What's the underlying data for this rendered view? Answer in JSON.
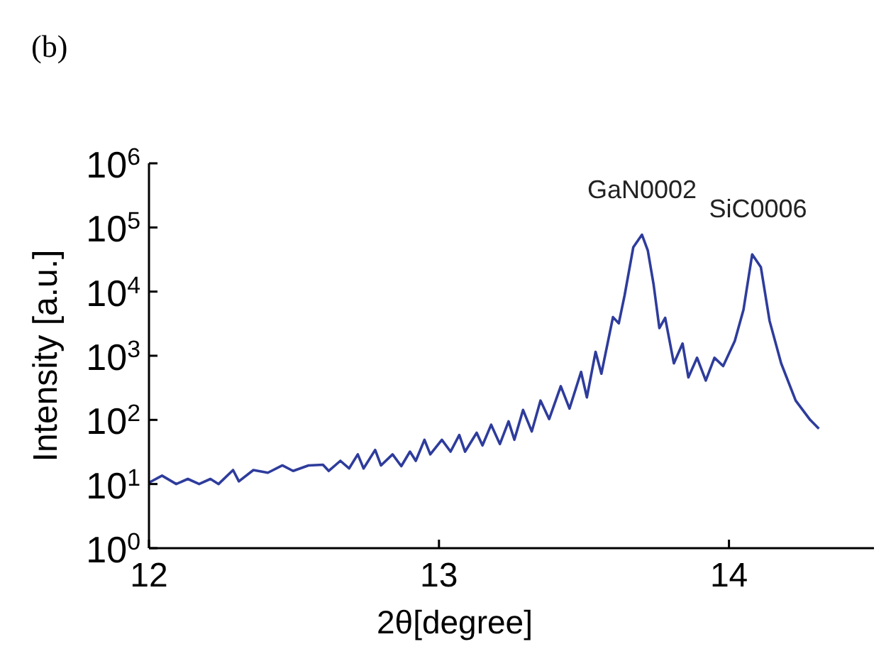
{
  "chart_data": {
    "type": "line",
    "title": "(b)",
    "xlabel": "2θ[degree]",
    "ylabel": "Intensity [a.u.]",
    "log": "y",
    "xlim": [
      12,
      14.5
    ],
    "ylim": [
      1,
      1000000
    ],
    "xticks": [
      12,
      13,
      14
    ],
    "yticks": [
      {
        "value": 1,
        "label": "10$^{0}$"
      },
      {
        "value": 10,
        "label": "10$^{1}$"
      },
      {
        "value": 100,
        "label": "10$^{2}$"
      },
      {
        "value": 1000,
        "label": "10$^{3}$"
      },
      {
        "value": 10000,
        "label": "10$^{4}$"
      },
      {
        "value": 100000,
        "label": "10$^{5}$"
      },
      {
        "value": 1000000,
        "label": "10$^{6}$"
      }
    ],
    "grid": false,
    "marker": "none",
    "line_style": "solid",
    "annotations": [
      {
        "text": "GaN0002",
        "x": 13.7,
        "y": 77000
      },
      {
        "text": "SiC0006",
        "x": 14.1,
        "y": 38000
      }
    ],
    "series": [
      {
        "color": "#2e3c9c",
        "x": [
          12.0,
          12.045,
          12.094,
          12.134,
          12.173,
          12.212,
          12.24,
          12.29,
          12.31,
          12.36,
          12.41,
          12.46,
          12.497,
          12.55,
          12.6,
          12.62,
          12.66,
          12.69,
          12.72,
          12.74,
          12.78,
          12.8,
          12.84,
          12.87,
          12.9,
          12.92,
          12.95,
          12.97,
          13.01,
          13.04,
          13.07,
          13.09,
          13.13,
          13.15,
          13.18,
          13.21,
          13.24,
          13.26,
          13.29,
          13.32,
          13.35,
          13.38,
          13.42,
          13.45,
          13.49,
          13.51,
          13.54,
          13.56,
          13.6,
          13.62,
          13.64,
          13.67,
          13.7,
          13.72,
          13.74,
          13.76,
          13.78,
          13.81,
          13.84,
          13.86,
          13.89,
          13.92,
          13.95,
          13.98,
          14.02,
          14.05,
          14.08,
          14.11,
          14.14,
          14.18,
          14.23,
          14.28,
          14.31
        ],
        "values": [
          10.5,
          13.5,
          10,
          12,
          10,
          12,
          10,
          16.5,
          11,
          16.5,
          15,
          19.5,
          16,
          19.5,
          20,
          16,
          23,
          17.5,
          29,
          17.5,
          34,
          19.5,
          29,
          19,
          32,
          23,
          49,
          29,
          49,
          32,
          58,
          32,
          63,
          40,
          84,
          42,
          95,
          49,
          143,
          66,
          200,
          103,
          335,
          150,
          560,
          224,
          1150,
          525,
          4000,
          3200,
          8700,
          49000,
          77000,
          44000,
          13000,
          2700,
          3900,
          760,
          1550,
          460,
          930,
          410,
          930,
          690,
          1700,
          5200,
          38000,
          24000,
          3500,
          760,
          200,
          100,
          73
        ]
      }
    ]
  }
}
